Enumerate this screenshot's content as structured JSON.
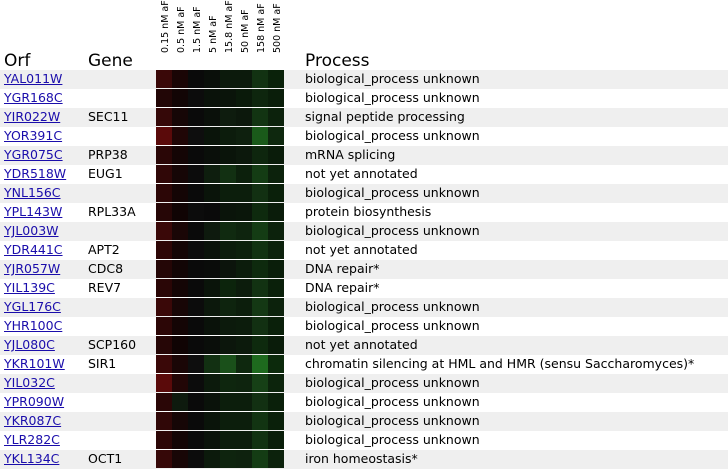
{
  "headers": {
    "orf": "Orf",
    "gene": "Gene",
    "process": "Process"
  },
  "conditions": [
    "0.15 nM aF",
    "0.5 nM aF",
    "1.5 nM aF",
    "5 nM aF",
    "15.8 nM aF",
    "50 nM aF",
    "158 nM aF",
    "500 nM aF"
  ],
  "rows": [
    {
      "orf": "YAL011W",
      "gene": "",
      "process": "biological_process unknown",
      "heat": [
        "#3a0808",
        "#1a0505",
        "#0a0a0a",
        "#0a0f0a",
        "#0c1a0c",
        "#0c1a0c",
        "#123212",
        "#0a220a"
      ]
    },
    {
      "orf": "YGR168C",
      "gene": "",
      "process": "biological_process unknown",
      "heat": [
        "#220606",
        "#120505",
        "#0c0c0c",
        "#0a120a",
        "#0a140a",
        "#0a1a0a",
        "#0e260e",
        "#0a1e0a"
      ]
    },
    {
      "orf": "YIR022W",
      "gene": "SEC11",
      "process": "signal peptide processing",
      "heat": [
        "#350808",
        "#160606",
        "#0a0a0a",
        "#0a100a",
        "#0e1c0e",
        "#0c180c",
        "#123412",
        "#0c220c"
      ]
    },
    {
      "orf": "YOR391C",
      "gene": "",
      "process": "biological_process unknown",
      "heat": [
        "#5a0a0a",
        "#200606",
        "#0e0e0e",
        "#0a140a",
        "#0c1c0c",
        "#0e200e",
        "#1a5a1a",
        "#0e280e"
      ]
    },
    {
      "orf": "YGR075C",
      "gene": "PRP38",
      "process": "mRNA splicing",
      "heat": [
        "#2a0606",
        "#140505",
        "#0a0a0a",
        "#0a0f0a",
        "#0a140a",
        "#0c180c",
        "#0e260e",
        "#0a1c0a"
      ]
    },
    {
      "orf": "YDR518W",
      "gene": "EUG1",
      "process": "not yet annotated",
      "heat": [
        "#300707",
        "#160606",
        "#0c0c0c",
        "#0e1e0e",
        "#123012",
        "#0c200c",
        "#143c14",
        "#0c220c"
      ]
    },
    {
      "orf": "YNL156C",
      "gene": "",
      "process": "biological_process unknown",
      "heat": [
        "#2c0606",
        "#140505",
        "#0a0a0a",
        "#0a140a",
        "#0c1e0c",
        "#0c1e0c",
        "#123012",
        "#0a200a"
      ]
    },
    {
      "orf": "YPL143W",
      "gene": "RPL33A",
      "process": "protein biosynthesis",
      "heat": [
        "#260606",
        "#100404",
        "#0c0c0c",
        "#0a0a0a",
        "#0a140a",
        "#0a160a",
        "#0e2a0e",
        "#0a1c0a"
      ]
    },
    {
      "orf": "YJL003W",
      "gene": "",
      "process": "biological_process unknown",
      "heat": [
        "#3a0808",
        "#1a0606",
        "#0a0a0a",
        "#0e1a0e",
        "#102a10",
        "#0e240e",
        "#143c14",
        "#0c220c"
      ]
    },
    {
      "orf": "YDR441C",
      "gene": "APT2",
      "process": "not yet annotated",
      "heat": [
        "#2e0606",
        "#140505",
        "#0c0c0c",
        "#0a120a",
        "#0c1c0c",
        "#0c200c",
        "#123212",
        "#0c220c"
      ]
    },
    {
      "orf": "YJR057W",
      "gene": "CDC8",
      "process": "DNA repair*",
      "heat": [
        "#240606",
        "#120505",
        "#0a0a0a",
        "#0a0c0a",
        "#0c140c",
        "#0c1c0c",
        "#0e2a0e",
        "#0a1e0a"
      ]
    },
    {
      "orf": "YIL139C",
      "gene": "REV7",
      "process": "DNA repair*",
      "heat": [
        "#2a0606",
        "#140505",
        "#0a0a0a",
        "#0a140a",
        "#0c240c",
        "#0c1c0c",
        "#123212",
        "#0a200a"
      ]
    },
    {
      "orf": "YGL176C",
      "gene": "",
      "process": "biological_process unknown",
      "heat": [
        "#3a0808",
        "#180606",
        "#0c0c0c",
        "#0c180c",
        "#0e240e",
        "#0c1e0c",
        "#143814",
        "#0c220c"
      ]
    },
    {
      "orf": "YHR100C",
      "gene": "",
      "process": "biological_process unknown",
      "heat": [
        "#2c0606",
        "#140505",
        "#0a0a0a",
        "#0a120a",
        "#0c1a0c",
        "#0c1c0c",
        "#123012",
        "#0a200a"
      ]
    },
    {
      "orf": "YJL080C",
      "gene": "SCP160",
      "process": "not yet annotated",
      "heat": [
        "#260606",
        "#100404",
        "#0a0a0a",
        "#0a0e0a",
        "#0c160c",
        "#0c1a0c",
        "#0e2a0e",
        "#0a1c0a"
      ]
    },
    {
      "orf": "YKR101W",
      "gene": "SIR1",
      "process": "chromatin silencing at HML and HMR (sensu Saccharomyces)*",
      "heat": [
        "#3a0808",
        "#1a0606",
        "#0e0e0e",
        "#123012",
        "#1a501a",
        "#0e280e",
        "#1e6a1e",
        "#0c2a0c"
      ]
    },
    {
      "orf": "YIL032C",
      "gene": "",
      "process": "biological_process unknown",
      "heat": [
        "#5a0a0a",
        "#220606",
        "#0c0c0c",
        "#0c1a0c",
        "#0e260e",
        "#0e240e",
        "#164016",
        "#0c240c"
      ]
    },
    {
      "orf": "YPR090W",
      "gene": "",
      "process": "biological_process unknown",
      "heat": [
        "#2a0606",
        "#0e1a0e",
        "#0a0a0a",
        "#0a120a",
        "#0c1e0c",
        "#0c1e0c",
        "#123012",
        "#0a200a"
      ]
    },
    {
      "orf": "YKR087C",
      "gene": "",
      "process": "biological_process unknown",
      "heat": [
        "#300707",
        "#160606",
        "#0a0a0a",
        "#0a140a",
        "#0c1e0c",
        "#0c1e0c",
        "#123412",
        "#0a200a"
      ]
    },
    {
      "orf": "YLR282C",
      "gene": "",
      "process": "biological_process unknown",
      "heat": [
        "#2c0606",
        "#140505",
        "#0a0a0a",
        "#0a120a",
        "#0c1c0c",
        "#0c1c0c",
        "#123212",
        "#0a1e0a"
      ]
    },
    {
      "orf": "YKL134C",
      "gene": "OCT1",
      "process": "iron homeostasis*",
      "heat": [
        "#360808",
        "#180606",
        "#0c0c0c",
        "#0c1a0c",
        "#0e240e",
        "#0e220e",
        "#143c14",
        "#0c220c"
      ]
    }
  ]
}
